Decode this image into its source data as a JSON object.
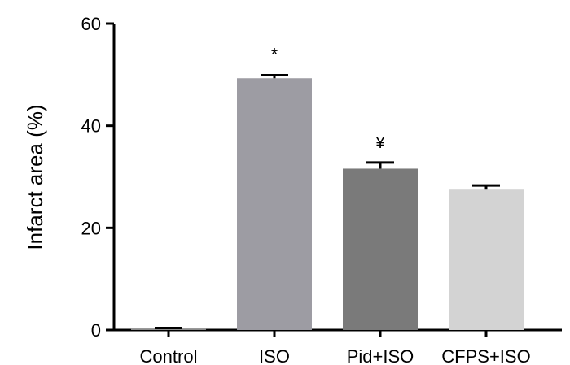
{
  "chart_data": {
    "type": "bar",
    "title": "",
    "xlabel": "",
    "ylabel": "Infarct area (%)",
    "ylim": [
      0,
      60
    ],
    "yticks": [
      0,
      20,
      40,
      60
    ],
    "grid": false,
    "legend": "none",
    "categories": [
      "Control",
      "ISO",
      "Pid+ISO",
      "CFPS+ISO"
    ],
    "values": [
      0.3,
      49.3,
      31.6,
      27.5
    ],
    "errors": [
      0.1,
      0.6,
      1.2,
      0.8
    ],
    "annotations": [
      "",
      "*",
      "¥",
      ""
    ],
    "colors": [
      "#8c8c8c",
      "#9d9ca3",
      "#7a7a7a",
      "#d3d3d3"
    ]
  }
}
